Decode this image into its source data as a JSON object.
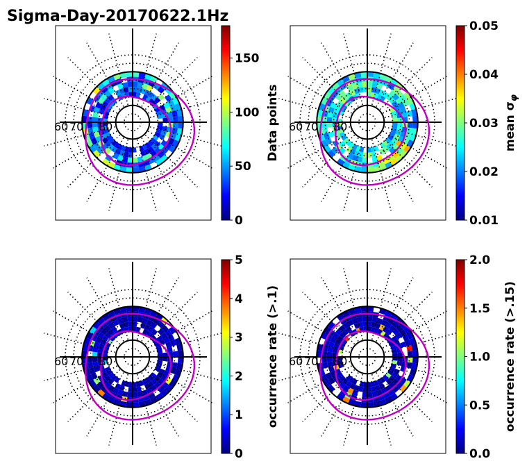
{
  "chart_data": {
    "type": "heatmap",
    "title": "Sigma-Day-20170622.1Hz",
    "projection": "polar (magnetic latitude)",
    "panels": [
      {
        "name": "data-points",
        "colorbar": {
          "label": "Data points",
          "range": [
            0,
            180
          ],
          "ticks": [
            "0",
            "50",
            "100",
            "150"
          ],
          "tick_values": [
            0,
            50,
            100,
            150
          ]
        },
        "lat_labels": [
          "60",
          "70",
          "80"
        ]
      },
      {
        "name": "mean-sigma-phi",
        "colorbar": {
          "label": "mean σ",
          "label_subscript": "φ",
          "range": [
            0.01,
            0.05
          ],
          "ticks": [
            "0.01",
            "0.02",
            "0.03",
            "0.04",
            "0.05"
          ],
          "tick_values": [
            0.01,
            0.02,
            0.03,
            0.04,
            0.05
          ]
        },
        "lat_labels": [
          "60",
          "70",
          "80"
        ]
      },
      {
        "name": "occurrence-rate-0.1",
        "colorbar": {
          "label": "occurrence rate (>.1)",
          "range": [
            0,
            5
          ],
          "ticks": [
            "0",
            "1",
            "2",
            "3",
            "4",
            "5"
          ],
          "tick_values": [
            0,
            1,
            2,
            3,
            4,
            5
          ]
        },
        "lat_labels": [
          "60",
          "70",
          "80"
        ]
      },
      {
        "name": "occurrence-rate-0.15",
        "colorbar": {
          "label": "occurrence rate (>.15)",
          "range": [
            0,
            2
          ],
          "ticks": [
            "0.0",
            "0.5",
            "1.0",
            "1.5",
            "2.0"
          ],
          "tick_values": [
            0,
            0.5,
            1,
            1.5,
            2
          ]
        },
        "lat_labels": [
          "60",
          "70",
          "80"
        ]
      }
    ],
    "colormap": "jet",
    "colors": {
      "oval": "#c000c0",
      "grid": "#000000"
    }
  }
}
